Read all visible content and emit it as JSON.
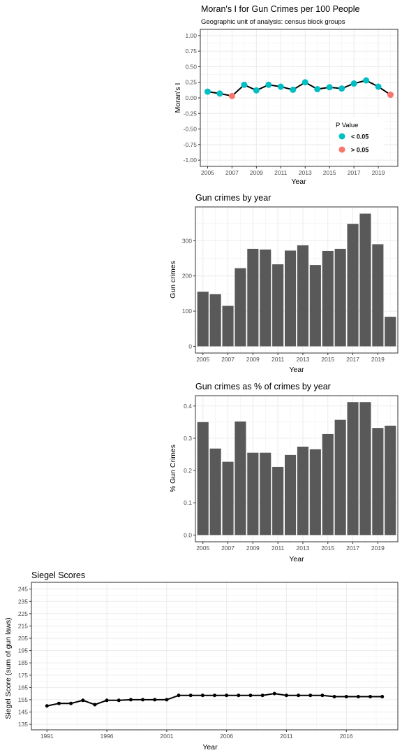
{
  "chart_data": [
    {
      "id": "morans",
      "type": "line",
      "title": "Moran's I for Gun Crimes per 100 People",
      "subtitle": "Geographic unit of analysis: census block groups",
      "xlabel": "Year",
      "ylabel": "Moran's I",
      "xlim": [
        2004.4,
        2020.6
      ],
      "ylim": [
        -1.1,
        1.1
      ],
      "xticks": [
        2005,
        2007,
        2009,
        2011,
        2013,
        2015,
        2017,
        2019
      ],
      "yticks": [
        -1.0,
        -0.75,
        -0.5,
        -0.25,
        0.0,
        0.25,
        0.5,
        0.75,
        1.0
      ],
      "ytick_labels": [
        "-1.00",
        "-0.75",
        "-0.50",
        "-0.25",
        "0.00",
        "0.25",
        "0.50",
        "0.75",
        "1.00"
      ],
      "grid": true,
      "x": [
        2005,
        2006,
        2007,
        2008,
        2009,
        2010,
        2011,
        2012,
        2013,
        2014,
        2015,
        2016,
        2017,
        2018,
        2019,
        2020
      ],
      "values": [
        0.1,
        0.07,
        0.03,
        0.21,
        0.12,
        0.21,
        0.18,
        0.13,
        0.25,
        0.14,
        0.17,
        0.15,
        0.23,
        0.28,
        0.18,
        0.05
      ],
      "p_group": [
        "lt",
        "lt",
        "gt",
        "lt",
        "lt",
        "lt",
        "lt",
        "lt",
        "lt",
        "lt",
        "lt",
        "lt",
        "lt",
        "lt",
        "lt",
        "gt"
      ],
      "legend": {
        "title": "P Value",
        "placement": "inside-bottom-right",
        "items": [
          {
            "key": "lt",
            "label": "< 0.05",
            "color": "#00BFC4"
          },
          {
            "key": "gt",
            "label": "> 0.05",
            "color": "#F8766D"
          }
        ]
      }
    },
    {
      "id": "guncrimes",
      "type": "bar",
      "title": "Gun crimes by year",
      "xlabel": "Year",
      "ylabel": "Gun crimes",
      "xlim": [
        2004.4,
        2020.6
      ],
      "ylim": [
        -19,
        396
      ],
      "xticks": [
        2005,
        2007,
        2009,
        2011,
        2013,
        2015,
        2017,
        2019
      ],
      "yticks": [
        0,
        100,
        200,
        300
      ],
      "ytick_labels": [
        "0",
        "100",
        "200",
        "300"
      ],
      "grid": true,
      "bar_color": "#595959",
      "x": [
        2005,
        2006,
        2007,
        2008,
        2009,
        2010,
        2011,
        2012,
        2013,
        2014,
        2015,
        2016,
        2017,
        2018,
        2019,
        2020
      ],
      "values": [
        155,
        148,
        115,
        222,
        277,
        275,
        233,
        272,
        287,
        231,
        271,
        277,
        348,
        377,
        290,
        84
      ]
    },
    {
      "id": "gunpct",
      "type": "bar",
      "title": "Gun crimes as % of crimes by year",
      "xlabel": "Year",
      "ylabel": "% Gun Crimes",
      "xlim": [
        2004.4,
        2020.6
      ],
      "ylim": [
        -0.021,
        0.432
      ],
      "xticks": [
        2005,
        2007,
        2009,
        2011,
        2013,
        2015,
        2017,
        2019
      ],
      "yticks": [
        0.0,
        0.1,
        0.2,
        0.3,
        0.4
      ],
      "ytick_labels": [
        "0.0",
        "0.1",
        "0.2",
        "0.3",
        "0.4"
      ],
      "grid": true,
      "bar_color": "#595959",
      "x": [
        2005,
        2006,
        2007,
        2008,
        2009,
        2010,
        2011,
        2012,
        2013,
        2014,
        2015,
        2016,
        2017,
        2018,
        2019,
        2020
      ],
      "values": [
        0.35,
        0.268,
        0.227,
        0.352,
        0.255,
        0.255,
        0.211,
        0.248,
        0.274,
        0.266,
        0.313,
        0.357,
        0.412,
        0.412,
        0.332,
        0.339
      ]
    },
    {
      "id": "siegel",
      "type": "line",
      "title": "Siegel Scores",
      "xlabel": "Year",
      "ylabel": "Siegel Score (sum of gun laws)",
      "xlim": [
        1989.7,
        2020.3
      ],
      "ylim": [
        130.5,
        250.5
      ],
      "xticks": [
        1991,
        1996,
        2001,
        2006,
        2011,
        2016
      ],
      "yticks": [
        135,
        145,
        155,
        165,
        175,
        185,
        195,
        205,
        215,
        225,
        235,
        245
      ],
      "ytick_labels": [
        "135",
        "145",
        "155",
        "165",
        "175",
        "185",
        "195",
        "205",
        "215",
        "225",
        "235",
        "245"
      ],
      "grid": true,
      "x": [
        1991,
        1992,
        1993,
        1994,
        1995,
        1996,
        1997,
        1998,
        1999,
        2000,
        2001,
        2002,
        2003,
        2004,
        2005,
        2006,
        2007,
        2008,
        2009,
        2010,
        2011,
        2012,
        2013,
        2014,
        2015,
        2016,
        2017,
        2018,
        2019
      ],
      "values": [
        150,
        152,
        152,
        154.5,
        151,
        154.5,
        154.5,
        155,
        155,
        155,
        155,
        158.5,
        158.5,
        158.5,
        158.5,
        158.5,
        158.5,
        158.5,
        158.5,
        160,
        158.5,
        158.5,
        158.5,
        158.5,
        157.5,
        157.5,
        157.5,
        157.5,
        157.5
      ]
    }
  ]
}
